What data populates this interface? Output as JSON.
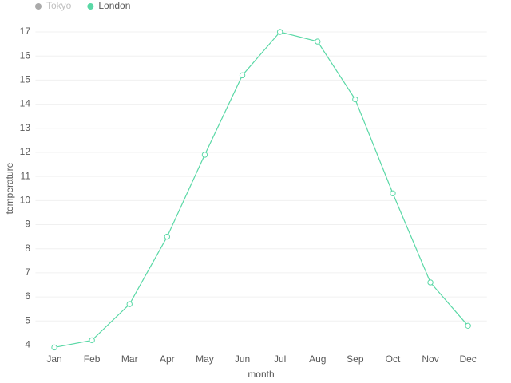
{
  "chart_data": {
    "type": "line",
    "x_label": "month",
    "y_label": "temperature",
    "categories": [
      "Jan",
      "Feb",
      "Mar",
      "Apr",
      "May",
      "Jun",
      "Jul",
      "Aug",
      "Sep",
      "Oct",
      "Nov",
      "Dec"
    ],
    "series": [
      {
        "name": "Tokyo",
        "color": "#aaaaaa",
        "visible": false,
        "values": [
          null,
          null,
          null,
          null,
          null,
          null,
          null,
          null,
          null,
          null,
          null,
          null
        ]
      },
      {
        "name": "London",
        "color": "#5ad8a6",
        "visible": true,
        "values": [
          3.9,
          4.2,
          5.7,
          8.5,
          11.9,
          15.2,
          17.0,
          16.6,
          14.2,
          10.3,
          6.6,
          4.8
        ]
      }
    ],
    "ylim": [
      3.75,
      17
    ],
    "yticks": [
      4,
      5,
      6,
      7,
      8,
      9,
      10,
      11,
      12,
      13,
      14,
      15,
      16,
      17
    ],
    "grid": true,
    "legend": "top-left"
  }
}
